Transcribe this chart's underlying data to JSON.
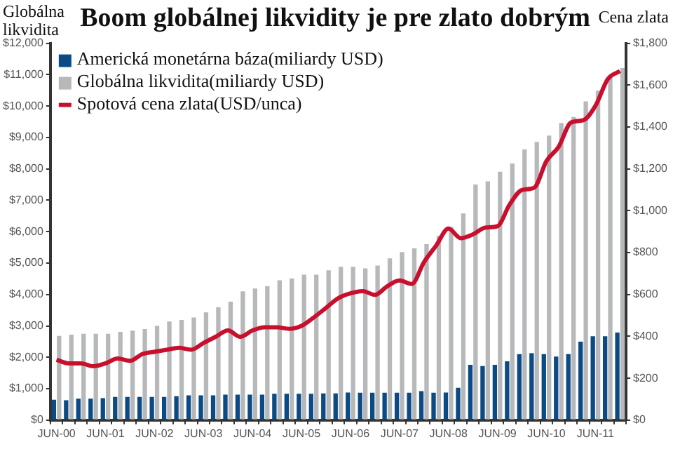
{
  "chart_data": {
    "type": "bar",
    "title": "Boom globálnej likvidity je pre zlato dobrým",
    "ylabel": "Globálna likvidita",
    "y2label": "Cena zlata",
    "categories": [
      "JUN-00",
      null,
      null,
      null,
      "JUN-01",
      null,
      null,
      null,
      "JUN-02",
      null,
      null,
      null,
      "JUN-03",
      null,
      null,
      null,
      "JUN-04",
      null,
      null,
      null,
      "JUN-05",
      null,
      null,
      null,
      "JUN-06",
      null,
      null,
      null,
      "JUN-07",
      null,
      null,
      null,
      "JUN-08",
      null,
      null,
      null,
      "JUN-09",
      null,
      null,
      null,
      "JUN-10",
      null,
      null,
      null,
      "JUN-11",
      null,
      null
    ],
    "series": [
      {
        "name": "Americká monetárna báza(miliardy USD)",
        "color": "#0b4a85",
        "values": [
          650,
          630,
          680,
          680,
          700,
          740,
          740,
          740,
          740,
          740,
          760,
          790,
          790,
          790,
          810,
          810,
          810,
          810,
          840,
          840,
          840,
          840,
          850,
          850,
          880,
          870,
          870,
          870,
          870,
          870,
          920,
          870,
          880,
          1030,
          1760,
          1720,
          1760,
          1870,
          2100,
          2130,
          2100,
          2020,
          2100,
          2500,
          2670,
          2670,
          2790
        ]
      },
      {
        "name": "Globálna likvidita(miliardy USD)",
        "color": "#b7b8ba",
        "values": [
          2680,
          2720,
          2750,
          2750,
          2750,
          2810,
          2850,
          2900,
          3000,
          3140,
          3190,
          3270,
          3430,
          3590,
          3770,
          4100,
          4190,
          4260,
          4450,
          4510,
          4630,
          4630,
          4770,
          4880,
          4880,
          4830,
          4920,
          5150,
          5350,
          5470,
          5600,
          5870,
          6150,
          6580,
          7500,
          7600,
          7910,
          8170,
          8620,
          8860,
          9060,
          9460,
          9650,
          10150,
          10490,
          10920,
          11210
        ]
      },
      {
        "name": "Spotová cena zlata(USD/unca)",
        "color": "#c8102e",
        "type": "line",
        "axis": "y2",
        "values": [
          288,
          271,
          271,
          257,
          271,
          294,
          283,
          315,
          326,
          336,
          345,
          336,
          368,
          398,
          428,
          398,
          428,
          443,
          443,
          436,
          450,
          490,
          536,
          582,
          605,
          616,
          598,
          639,
          667,
          650,
          754,
          834,
          915,
          869,
          887,
          919,
          926,
          1030,
          1099,
          1110,
          1237,
          1306,
          1421,
          1432,
          1501,
          1628,
          1667
        ]
      }
    ],
    "ylim": [
      0,
      12000
    ],
    "yticks": [
      {
        "value": 0,
        "label": "$0"
      },
      {
        "value": 1000,
        "label": "$1,000"
      },
      {
        "value": 2000,
        "label": "$2,000"
      },
      {
        "value": 3000,
        "label": "$3,000"
      },
      {
        "value": 4000,
        "label": "$4,000"
      },
      {
        "value": 5000,
        "label": "$5,000"
      },
      {
        "value": 6000,
        "label": "$6,000"
      },
      {
        "value": 7000,
        "label": "$7,000"
      },
      {
        "value": 8000,
        "label": "$8,000"
      },
      {
        "value": 9000,
        "label": "$9,000"
      },
      {
        "value": 10000,
        "label": "$10,000"
      },
      {
        "value": 11000,
        "label": "$11,000"
      },
      {
        "value": 12000,
        "label": "$12,000"
      }
    ],
    "y2lim": [
      0,
      1800
    ],
    "y2ticks": [
      {
        "value": 0,
        "label": "$0"
      },
      {
        "value": 200,
        "label": "$200"
      },
      {
        "value": 400,
        "label": "$400"
      },
      {
        "value": 600,
        "label": "$600"
      },
      {
        "value": 800,
        "label": "$800"
      },
      {
        "value": 1000,
        "label": "$1,000"
      },
      {
        "value": 1200,
        "label": "$1,200"
      },
      {
        "value": 1400,
        "label": "$1,400"
      },
      {
        "value": 1600,
        "label": "$1,600"
      },
      {
        "value": 1800,
        "label": "$1,800"
      }
    ],
    "legend": "top left",
    "grid": false,
    "marker": "none",
    "line_style": "solid"
  }
}
